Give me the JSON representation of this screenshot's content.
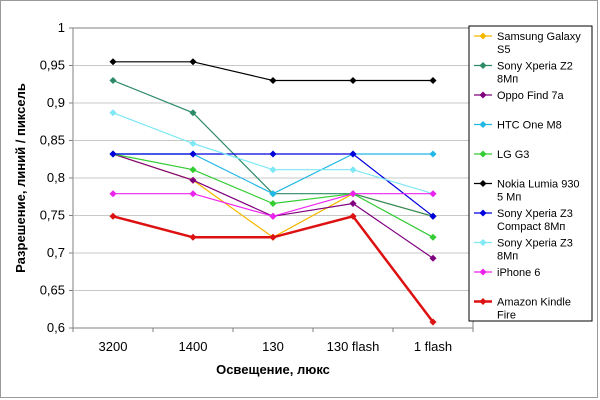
{
  "chart_data": {
    "type": "line",
    "title": "",
    "xlabel": "Освещение, люкс",
    "ylabel": "Разрешение, линий / пиксель",
    "ylim": [
      0.6,
      1.0
    ],
    "yticks": [
      "0,6",
      "0,65",
      "0,7",
      "0,75",
      "0,8",
      "0,85",
      "0,9",
      "0,95",
      "1"
    ],
    "categories": [
      "3200",
      "1400",
      "130",
      "130 flash",
      "1 flash"
    ],
    "grid": "horizontal",
    "legend": "right",
    "series": [
      {
        "name": "Samsung Galaxy S5",
        "legend_lines": [
          "Samsung Galaxy",
          "S5"
        ],
        "color": "#f5b800",
        "values": [
          0.832,
          0.797,
          0.721,
          0.779,
          0.749
        ]
      },
      {
        "name": "Sony Xperia Z2 8Мп",
        "legend_lines": [
          "Sony Xperia Z2",
          "8Мп"
        ],
        "color": "#2e8b68",
        "values": [
          0.93,
          0.887,
          0.779,
          0.779,
          0.749
        ]
      },
      {
        "name": "Oppo Find 7a",
        "legend_lines": [
          "Oppo Find 7a"
        ],
        "color": "#800080",
        "values": [
          0.832,
          0.797,
          0.749,
          0.766,
          0.693
        ]
      },
      {
        "name": "HTC One M8",
        "legend_lines": [
          "HTC One M8"
        ],
        "color": "#22b8e6",
        "values": [
          0.832,
          0.832,
          0.779,
          0.832,
          0.832
        ]
      },
      {
        "name": "LG G3",
        "legend_lines": [
          "LG G3"
        ],
        "color": "#33cc33",
        "values": [
          0.832,
          0.811,
          0.766,
          0.779,
          0.721
        ]
      },
      {
        "name": "Nokia Lumia 930 5 Мп",
        "legend_lines": [
          "Nokia Lumia 930",
          "5 Мп"
        ],
        "color": "#000000",
        "values": [
          0.955,
          0.955,
          0.93,
          0.93,
          0.93
        ]
      },
      {
        "name": "Sony Xperia Z3 Compact 8Мп",
        "legend_lines": [
          "Sony Xperia Z3",
          "Compact 8Мп"
        ],
        "color": "#0000dd",
        "values": [
          0.832,
          0.832,
          0.832,
          0.832,
          0.749
        ]
      },
      {
        "name": "Sony Xperia Z3 8Мп",
        "legend_lines": [
          "Sony Xperia Z3",
          "8Мп"
        ],
        "color": "#7fe8f5",
        "values": [
          0.887,
          0.846,
          0.811,
          0.811,
          0.779
        ]
      },
      {
        "name": "iPhone 6",
        "legend_lines": [
          "iPhone 6"
        ],
        "color": "#ee22ee",
        "values": [
          0.779,
          0.779,
          0.749,
          0.779,
          0.779
        ]
      },
      {
        "name": "Amazon Kindle Fire",
        "legend_lines": [
          "Amazon Kindle",
          "Fire"
        ],
        "color": "#dd1111",
        "thick": true,
        "values": [
          0.749,
          0.721,
          0.721,
          0.749,
          0.608
        ]
      }
    ]
  }
}
